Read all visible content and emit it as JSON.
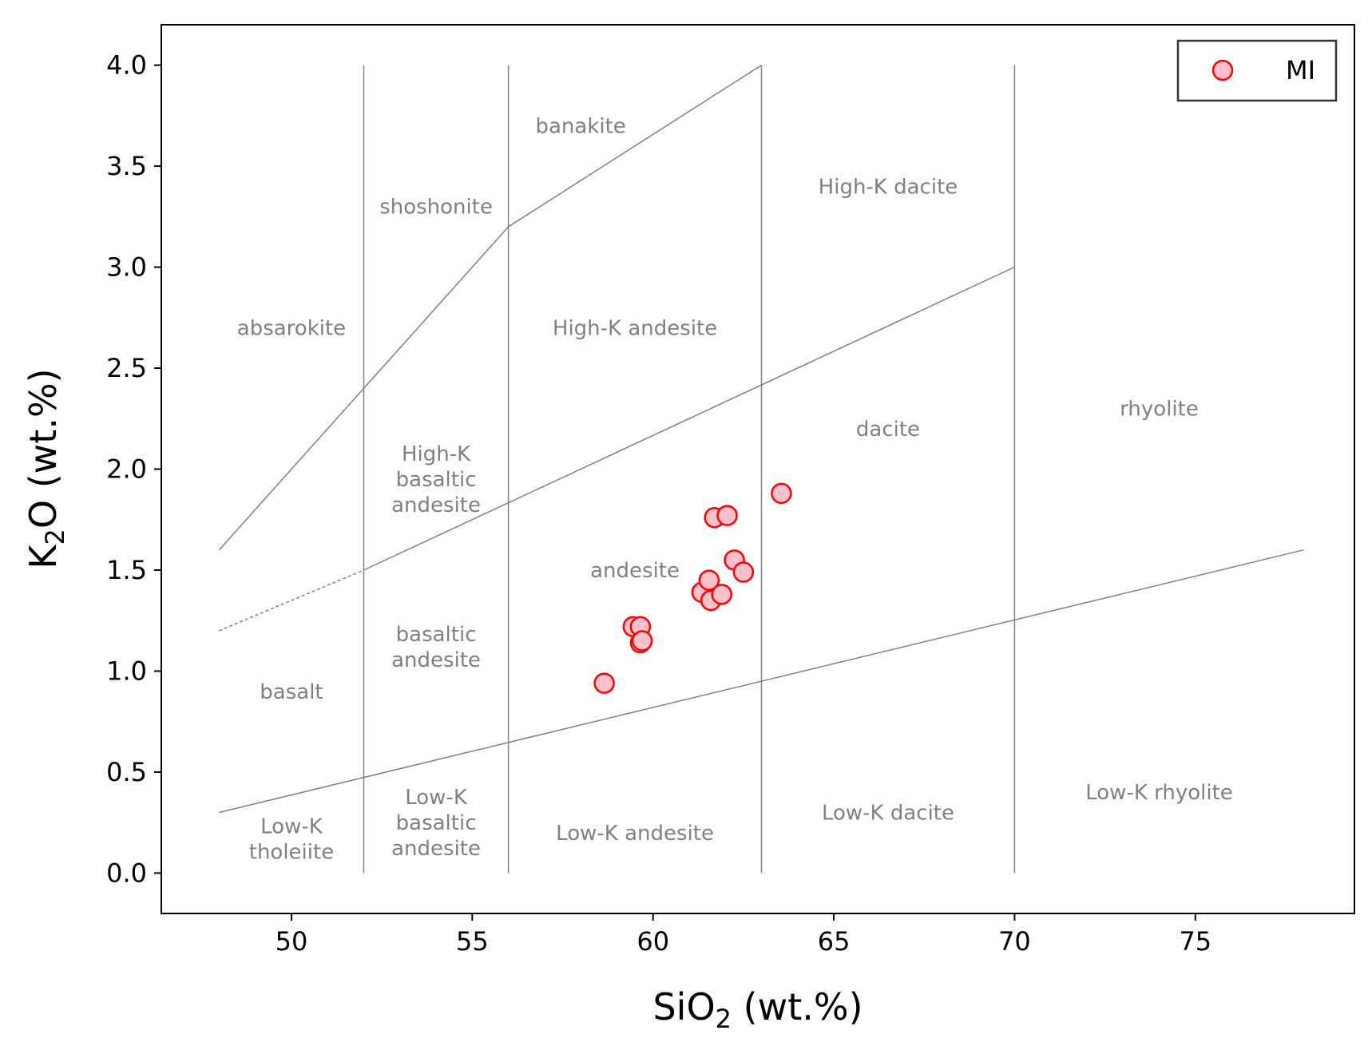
{
  "chart_data": {
    "type": "scatter",
    "x_axis": {
      "main": "SiO",
      "sub": "2",
      "unit": " (wt.%)",
      "range": [
        46.4,
        79.4
      ],
      "ticks": [
        50,
        55,
        60,
        65,
        70,
        75
      ],
      "tick_labels": [
        "50",
        "55",
        "60",
        "65",
        "70",
        "75"
      ]
    },
    "y_axis": {
      "main": "K",
      "sub": "2",
      "rest": "O (wt.%)",
      "range": [
        -0.2,
        4.2
      ],
      "ticks": [
        0.0,
        0.5,
        1.0,
        1.5,
        2.0,
        2.5,
        3.0,
        3.5,
        4.0
      ],
      "tick_labels": [
        "0.0",
        "0.5",
        "1.0",
        "1.5",
        "2.0",
        "2.5",
        "3.0",
        "3.5",
        "4.0"
      ]
    },
    "grid": false,
    "legend": {
      "position": "top-right",
      "entries": [
        "MI"
      ]
    },
    "series": [
      {
        "name": "MI",
        "marker": "circle",
        "face_color": "#ffc0cb",
        "edge_color": "#ff0000",
        "points": [
          [
            58.65,
            0.94
          ],
          [
            59.45,
            1.22
          ],
          [
            59.65,
            1.22
          ],
          [
            59.65,
            1.14
          ],
          [
            59.7,
            1.15
          ],
          [
            61.35,
            1.39
          ],
          [
            61.55,
            1.45
          ],
          [
            61.6,
            1.35
          ],
          [
            61.9,
            1.38
          ],
          [
            61.7,
            1.76
          ],
          [
            62.05,
            1.77
          ],
          [
            62.25,
            1.55
          ],
          [
            62.5,
            1.49
          ],
          [
            63.55,
            1.88
          ]
        ]
      }
    ],
    "boundaries": [
      {
        "style": "solid",
        "points": [
          [
            48,
            1.6
          ],
          [
            56,
            3.2
          ],
          [
            63,
            4.0
          ]
        ]
      },
      {
        "style": "dashed",
        "points": [
          [
            48,
            1.2
          ],
          [
            52,
            1.5
          ]
        ]
      },
      {
        "style": "solid",
        "points": [
          [
            52,
            1.5
          ],
          [
            70,
            3.0
          ]
        ]
      },
      {
        "style": "solid",
        "points": [
          [
            48,
            0.3
          ],
          [
            78,
            1.6
          ]
        ]
      },
      {
        "style": "solid",
        "points": [
          [
            52,
            0
          ],
          [
            52,
            4.0
          ]
        ]
      },
      {
        "style": "solid",
        "points": [
          [
            56,
            0
          ],
          [
            56,
            4.0
          ]
        ]
      },
      {
        "style": "solid",
        "points": [
          [
            63,
            0
          ],
          [
            63,
            4.0
          ]
        ]
      },
      {
        "style": "solid",
        "points": [
          [
            70,
            0
          ],
          [
            70,
            4.0
          ]
        ]
      }
    ],
    "region_labels": [
      {
        "lines": [
          "absarokite"
        ],
        "x": 50,
        "y": 2.7
      },
      {
        "lines": [
          "shoshonite"
        ],
        "x": 54,
        "y": 3.3
      },
      {
        "lines": [
          "banakite"
        ],
        "x": 58,
        "y": 3.7
      },
      {
        "lines": [
          "High-K dacite"
        ],
        "x": 66.5,
        "y": 3.4
      },
      {
        "lines": [
          "High-K andesite"
        ],
        "x": 59.5,
        "y": 2.7
      },
      {
        "lines": [
          "High-K",
          "basaltic",
          "andesite"
        ],
        "x": 54,
        "y": 1.95
      },
      {
        "lines": [
          "dacite"
        ],
        "x": 66.5,
        "y": 2.2
      },
      {
        "lines": [
          "rhyolite"
        ],
        "x": 74,
        "y": 2.3
      },
      {
        "lines": [
          "andesite"
        ],
        "x": 59.5,
        "y": 1.5
      },
      {
        "lines": [
          "basaltic",
          "andesite"
        ],
        "x": 54,
        "y": 1.12
      },
      {
        "lines": [
          "basalt"
        ],
        "x": 50,
        "y": 0.9
      },
      {
        "lines": [
          "Low-K",
          "tholeiite"
        ],
        "x": 50,
        "y": 0.17
      },
      {
        "lines": [
          "Low-K",
          "basaltic",
          "andesite"
        ],
        "x": 54,
        "y": 0.25
      },
      {
        "lines": [
          "Low-K andesite"
        ],
        "x": 59.5,
        "y": 0.2
      },
      {
        "lines": [
          "Low-K dacite"
        ],
        "x": 66.5,
        "y": 0.3
      },
      {
        "lines": [
          "Low-K rhyolite"
        ],
        "x": 74,
        "y": 0.4
      }
    ]
  }
}
